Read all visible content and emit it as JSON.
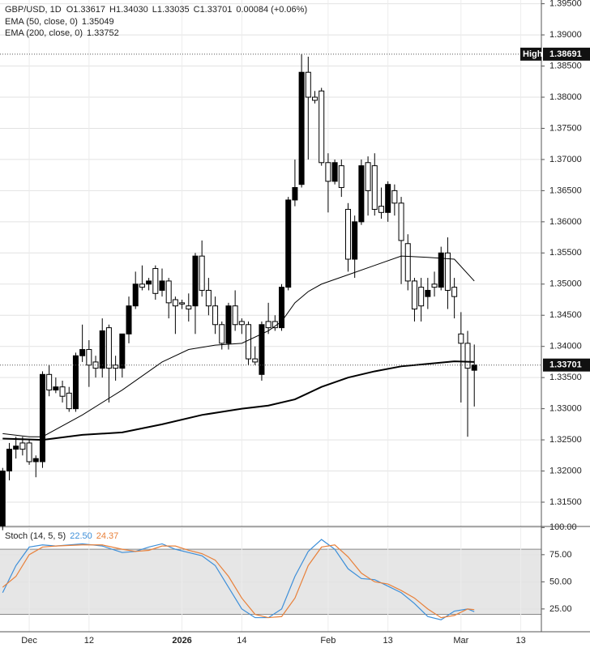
{
  "chart_data": [
    {
      "type": "candlestick",
      "title": "GBP/USD, 1D",
      "ohlc_legend": [
        "O1.33617",
        "H1.34030",
        "L1.33035",
        "C1.33701"
      ],
      "change": "0.00084 (+0.06%)",
      "open": [
        1.3112,
        1.32,
        1.3235,
        1.3245,
        1.3245,
        1.3215,
        1.3215,
        1.3355,
        1.333,
        1.3335,
        1.3325,
        1.33,
        1.3385,
        1.3395,
        1.3375,
        1.3365,
        1.343,
        1.337,
        1.3365,
        1.342,
        1.3465,
        1.35,
        1.35,
        1.3525,
        1.349,
        1.3505,
        1.3475,
        1.347,
        1.3465,
        1.3465,
        1.3545,
        1.349,
        1.3465,
        1.3435,
        1.3405,
        1.3465,
        1.344,
        1.3435,
        1.338,
        1.3355,
        1.344,
        1.344,
        1.343,
        1.3495,
        1.3635,
        1.366,
        1.384,
        1.38,
        1.381,
        1.3695,
        1.3665,
        1.369,
        1.362,
        1.354,
        1.36,
        1.3695,
        1.369,
        1.3625,
        1.3615,
        1.365,
        1.363,
        1.3565,
        1.3505,
        1.3495,
        1.348,
        1.35,
        1.3495,
        1.355,
        1.3495,
        1.342,
        1.3405,
        1.33617
      ],
      "high": [
        1.3205,
        1.3245,
        1.3255,
        1.3255,
        1.325,
        1.3225,
        1.336,
        1.337,
        1.335,
        1.3345,
        1.3335,
        1.339,
        1.3435,
        1.341,
        1.3385,
        1.3445,
        1.3435,
        1.3385,
        1.342,
        1.348,
        1.352,
        1.353,
        1.351,
        1.353,
        1.3525,
        1.351,
        1.348,
        1.3475,
        1.3485,
        1.355,
        1.357,
        1.351,
        1.348,
        1.344,
        1.347,
        1.349,
        1.3445,
        1.344,
        1.34,
        1.344,
        1.347,
        1.345,
        1.35,
        1.364,
        1.37,
        1.38691,
        1.3865,
        1.381,
        1.3815,
        1.371,
        1.37,
        1.37,
        1.363,
        1.361,
        1.37,
        1.3705,
        1.371,
        1.3655,
        1.3665,
        1.366,
        1.364,
        1.358,
        1.351,
        1.351,
        1.351,
        1.352,
        1.356,
        1.3575,
        1.351,
        1.3455,
        1.3425,
        1.3403
      ],
      "low": [
        1.3105,
        1.3185,
        1.322,
        1.3225,
        1.321,
        1.319,
        1.3205,
        1.332,
        1.3325,
        1.331,
        1.3295,
        1.3295,
        1.3375,
        1.3335,
        1.335,
        1.335,
        1.331,
        1.3345,
        1.335,
        1.3405,
        1.346,
        1.349,
        1.349,
        1.3475,
        1.348,
        1.3445,
        1.342,
        1.346,
        1.344,
        1.342,
        1.348,
        1.345,
        1.342,
        1.3395,
        1.3395,
        1.3425,
        1.342,
        1.337,
        1.337,
        1.3345,
        1.342,
        1.3425,
        1.3425,
        1.349,
        1.3625,
        1.3655,
        1.37,
        1.379,
        1.369,
        1.3615,
        1.366,
        1.364,
        1.352,
        1.351,
        1.3595,
        1.361,
        1.361,
        1.3605,
        1.36,
        1.361,
        1.35,
        1.349,
        1.344,
        1.344,
        1.346,
        1.348,
        1.349,
        1.346,
        1.3445,
        1.331,
        1.3255,
        1.33035
      ],
      "close": [
        1.32,
        1.3235,
        1.324,
        1.3235,
        1.3215,
        1.322,
        1.3355,
        1.333,
        1.3335,
        1.332,
        1.33,
        1.3385,
        1.3395,
        1.337,
        1.3365,
        1.3425,
        1.3365,
        1.3365,
        1.342,
        1.3465,
        1.35,
        1.3495,
        1.3505,
        1.3485,
        1.3505,
        1.347,
        1.3465,
        1.3468,
        1.346,
        1.3545,
        1.349,
        1.3465,
        1.3435,
        1.3405,
        1.3465,
        1.3435,
        1.3435,
        1.338,
        1.3375,
        1.3435,
        1.343,
        1.343,
        1.3495,
        1.3635,
        1.3655,
        1.384,
        1.38,
        1.3795,
        1.3695,
        1.3665,
        1.3695,
        1.3655,
        1.354,
        1.36,
        1.369,
        1.365,
        1.362,
        1.3615,
        1.366,
        1.363,
        1.357,
        1.3505,
        1.346,
        1.3465,
        1.349,
        1.3495,
        1.355,
        1.349,
        1.348,
        1.3405,
        1.3365,
        1.33701
      ],
      "up_color": "#000000",
      "down_color": "#ffffff",
      "lines": [
        {
          "name": "EMA (50, close, 0)",
          "last": 1.35049,
          "color": "#000000",
          "width": 1,
          "x": [
            0,
            4,
            6,
            12,
            18,
            24,
            28,
            32,
            36,
            40,
            42,
            44,
            46,
            48,
            52,
            56,
            60,
            64,
            68,
            71
          ],
          "values": [
            1.326,
            1.3255,
            1.3255,
            1.329,
            1.333,
            1.3375,
            1.3395,
            1.3402,
            1.3405,
            1.3425,
            1.344,
            1.347,
            1.3488,
            1.35,
            1.3515,
            1.353,
            1.3545,
            1.3543,
            1.354,
            1.3505
          ]
        },
        {
          "name": "EMA (200, close, 0)",
          "last": 1.33752,
          "color": "#000000",
          "width": 2,
          "x": [
            0,
            6,
            12,
            18,
            24,
            30,
            36,
            40,
            44,
            48,
            52,
            56,
            60,
            64,
            68,
            71
          ],
          "values": [
            1.3252,
            1.325,
            1.3258,
            1.3262,
            1.3275,
            1.329,
            1.33,
            1.3305,
            1.3315,
            1.3335,
            1.335,
            1.336,
            1.3368,
            1.3372,
            1.3376,
            1.3375
          ]
        }
      ],
      "high_marker": {
        "label": "High",
        "value": 1.38691
      },
      "last_price": 1.33701,
      "xlim": [
        -0.4,
        81.1
      ],
      "xticks": [
        {
          "value": 4,
          "label": "Dec"
        },
        {
          "value": 13,
          "label": "12"
        },
        {
          "value": 27,
          "label": "2026"
        },
        {
          "value": 36,
          "label": "14"
        },
        {
          "value": 49,
          "label": "Feb"
        },
        {
          "value": 58,
          "label": "13"
        },
        {
          "value": 69,
          "label": "Mar"
        },
        {
          "value": 78,
          "label": "13"
        }
      ],
      "ylim": [
        1.3111,
        1.3956
      ],
      "yticks": [
        {
          "value": 1.395,
          "label": "1.39500"
        },
        {
          "value": 1.39,
          "label": "1.39000"
        },
        {
          "value": 1.385,
          "label": "1.38500"
        },
        {
          "value": 1.38,
          "label": "1.38000"
        },
        {
          "value": 1.375,
          "label": "1.37500"
        },
        {
          "value": 1.37,
          "label": "1.37000"
        },
        {
          "value": 1.365,
          "label": "1.36500"
        },
        {
          "value": 1.36,
          "label": "1.36000"
        },
        {
          "value": 1.355,
          "label": "1.35500"
        },
        {
          "value": 1.35,
          "label": "1.35000"
        },
        {
          "value": 1.345,
          "label": "1.34500"
        },
        {
          "value": 1.34,
          "label": "1.34000"
        },
        {
          "value": 1.335,
          "label": "1.33500"
        },
        {
          "value": 1.33,
          "label": "1.33000"
        },
        {
          "value": 1.325,
          "label": "1.32500"
        },
        {
          "value": 1.32,
          "label": "1.32000"
        },
        {
          "value": 1.315,
          "label": "1.31500"
        }
      ],
      "grid": true
    },
    {
      "type": "line",
      "title": "Stoch (14, 5, 5)",
      "series": [
        {
          "color": "#3d8fd9",
          "last_label": "22.50",
          "x": [
            0,
            2,
            4,
            6,
            8,
            12,
            15,
            18,
            20,
            22,
            24,
            26,
            28,
            30,
            32,
            34,
            36,
            38,
            40,
            42,
            44,
            46,
            48,
            50,
            52,
            54,
            56,
            58,
            60,
            62,
            64,
            66,
            68,
            70,
            71
          ],
          "values": [
            40,
            65,
            82,
            84,
            83,
            85,
            83,
            77,
            78,
            82,
            85,
            80,
            77,
            74,
            65,
            45,
            25,
            17,
            17,
            25,
            55,
            78,
            89,
            80,
            62,
            53,
            52,
            46,
            40,
            30,
            18,
            15,
            23,
            25,
            22.5
          ]
        },
        {
          "color": "#e8803a",
          "last_label": "24.37",
          "x": [
            0,
            2,
            4,
            6,
            8,
            12,
            15,
            18,
            20,
            22,
            24,
            26,
            28,
            30,
            32,
            34,
            36,
            38,
            40,
            42,
            44,
            46,
            48,
            50,
            52,
            54,
            56,
            58,
            60,
            62,
            64,
            66,
            68,
            70,
            71
          ],
          "values": [
            45,
            55,
            75,
            82,
            83,
            84,
            84,
            80,
            78,
            79,
            83,
            83,
            79,
            76,
            70,
            55,
            35,
            20,
            17,
            18,
            35,
            65,
            82,
            84,
            73,
            58,
            50,
            48,
            42,
            35,
            25,
            17,
            19,
            25,
            24.37
          ]
        }
      ],
      "band": [
        20,
        80
      ],
      "xlim": [
        -0.4,
        81.1
      ],
      "ylim": [
        4,
        101
      ],
      "yticks": [
        {
          "value": 25,
          "label": "25.00"
        },
        {
          "value": 50,
          "label": "50.00"
        },
        {
          "value": 75,
          "label": "75.00"
        },
        {
          "value": 100,
          "label": "100.00"
        }
      ],
      "grid": true
    }
  ]
}
